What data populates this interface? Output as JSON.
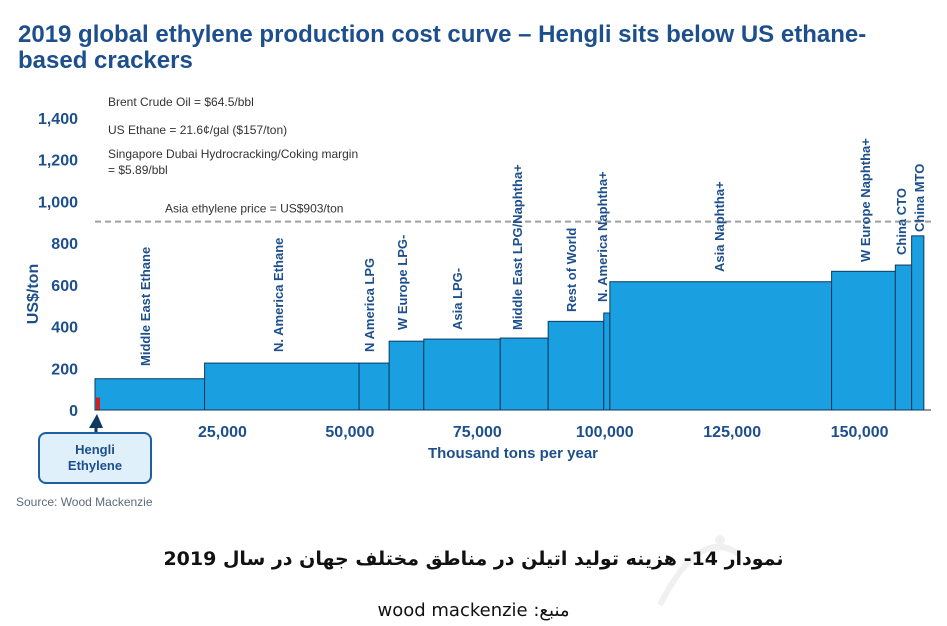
{
  "title": "2019 global ethylene production cost curve – Hengli sits below US ethane-based crackers",
  "source": "Source: Wood Mackenzie",
  "caption": {
    "line1_prefix": "نمودار",
    "line1_num": "14-",
    "line1_text": " هزینه تولید اتیلن در مناطق مختلف جهان در سال ",
    "line1_year": "2019",
    "line2_label": "منبع: ",
    "line2_name": "wood mackenzie"
  },
  "callout": {
    "line1": "Hengli",
    "line2": "Ethylene"
  },
  "colors": {
    "bar": "#1aa0e0",
    "bar_edge": "#0d3a5e",
    "title": "#1d4f8c",
    "hengli": "#d41f1f",
    "dash": "#a0a0a0"
  },
  "chart_data": {
    "type": "bar",
    "subtype": "cost-curve",
    "xlabel": "Thousand tons per year",
    "ylabel": "US$/ton",
    "xlim": [
      0,
      164000
    ],
    "ylim": [
      0,
      1400
    ],
    "x_ticks": [
      25000,
      50000,
      75000,
      100000,
      125000,
      150000
    ],
    "x_tick_labels": [
      "25,000",
      "50,000",
      "75,000",
      "100,000",
      "125,000",
      "150,000"
    ],
    "y_ticks": [
      0,
      200,
      400,
      600,
      800,
      1000,
      1200,
      1400
    ],
    "y_tick_labels": [
      "0",
      "200",
      "400",
      "600",
      "800",
      "1,000",
      "1,200",
      "1,400"
    ],
    "segments": [
      {
        "label": "Hengli",
        "x0": 0,
        "x1": 500,
        "value": 60,
        "highlight": true
      },
      {
        "label": "Middle East Ethane",
        "x0": 0,
        "x1": 21500,
        "value": 150
      },
      {
        "label": "N. America Ethane",
        "x0": 21500,
        "x1": 51800,
        "value": 225
      },
      {
        "label": "N America LPG",
        "x0": 51800,
        "x1": 57700,
        "value": 225
      },
      {
        "label": "W Europe LPG-",
        "x0": 57700,
        "x1": 64500,
        "value": 330
      },
      {
        "label": "Asia LPG-",
        "x0": 64500,
        "x1": 79500,
        "value": 340
      },
      {
        "label": "Middle East LPG/Naphtha+",
        "x0": 79500,
        "x1": 88900,
        "value": 345
      },
      {
        "label": "Rest of World",
        "x0": 88900,
        "x1": 99800,
        "value": 425
      },
      {
        "label": "N. America Naphtha+",
        "x0": 99800,
        "x1": 101000,
        "value": 465
      },
      {
        "label": "Asia Naphtha+",
        "x0": 101000,
        "x1": 144500,
        "value": 615
      },
      {
        "label": "W Europe Naphtha+",
        "x0": 144500,
        "x1": 157000,
        "value": 665
      },
      {
        "label": "China CTO",
        "x0": 157000,
        "x1": 160200,
        "value": 695
      },
      {
        "label": "China MTO",
        "x0": 160200,
        "x1": 162600,
        "value": 835
      }
    ],
    "reference_line": {
      "value": 903,
      "label": "Asia ethylene price = US$903/ton"
    },
    "annotations": [
      "Brent Crude Oil = $64.5/bbl",
      "US Ethane = 21.6¢/gal ($157/ton)",
      "Singapore Dubai Hydrocracking/Coking margin",
      "= $5.89/bbl"
    ],
    "grid": false,
    "legend": "none"
  }
}
